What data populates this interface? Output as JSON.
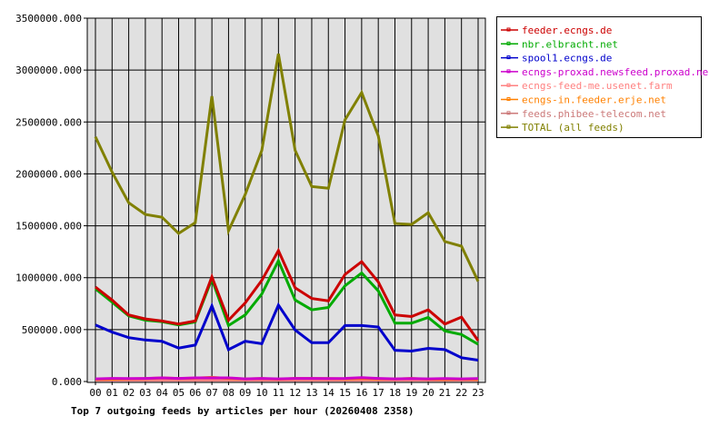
{
  "chart_data": {
    "type": "line",
    "title": "Top 7 outgoing feeds by articles per hour (20260408 2358)",
    "xlabel": "",
    "ylabel": "",
    "ylim": [
      0,
      3500000
    ],
    "yticks": [
      "0.000",
      "500000.000",
      "1000000.000",
      "1500000.000",
      "2000000.000",
      "2500000.000",
      "3000000.000",
      "3500000.000"
    ],
    "grid": true,
    "legend_position": "right",
    "categories": [
      "00",
      "01",
      "02",
      "03",
      "04",
      "05",
      "06",
      "07",
      "08",
      "09",
      "10",
      "11",
      "12",
      "13",
      "14",
      "15",
      "16",
      "17",
      "18",
      "19",
      "20",
      "21",
      "22",
      "23"
    ],
    "series": [
      {
        "name": "feeder.ecngs.de",
        "color": "#cc0000",
        "values": [
          910000,
          785000,
          641000,
          603000,
          583000,
          554000,
          583000,
          1009000,
          591000,
          757000,
          974000,
          1261000,
          902000,
          800000,
          777000,
          1032000,
          1154000,
          959000,
          641000,
          626000,
          690000,
          554000,
          620000,
          394000
        ]
      },
      {
        "name": "nbr.elbracht.net",
        "color": "#00aa00",
        "values": [
          893000,
          765000,
          632000,
          591000,
          577000,
          545000,
          574000,
          988000,
          539000,
          641000,
          843000,
          1163000,
          785000,
          690000,
          713000,
          922000,
          1046000,
          872000,
          562000,
          562000,
          617000,
          487000,
          452000,
          359000
        ]
      },
      {
        "name": "spool1.ecngs.de",
        "color": "#0000cc",
        "values": [
          545000,
          476000,
          423000,
          400000,
          388000,
          322000,
          351000,
          728000,
          307000,
          388000,
          365000,
          736000,
          496000,
          374000,
          374000,
          539000,
          539000,
          525000,
          301000,
          293000,
          319000,
          307000,
          229000,
          206000
        ]
      },
      {
        "name": "ecngs-proxad.newsfeed.proxad.net",
        "color": "#cc00cc",
        "values": [
          25000,
          30000,
          28000,
          30000,
          35000,
          30000,
          35000,
          35000,
          35000,
          25000,
          30000,
          25000,
          30000,
          30000,
          28000,
          30000,
          38000,
          30000,
          25000,
          28000,
          25000,
          28000,
          25000,
          28000
        ]
      },
      {
        "name": "ecngs-feed-me.usenet.farm",
        "color": "#ff8080",
        "values": [
          15000,
          15000,
          15000,
          15000,
          15000,
          15000,
          15000,
          15000,
          15000,
          15000,
          15000,
          15000,
          15000,
          15000,
          15000,
          15000,
          15000,
          15000,
          15000,
          15000,
          15000,
          15000,
          15000,
          15000
        ]
      },
      {
        "name": "ecngs-in.feeder.erje.net",
        "color": "#ff8000",
        "values": [
          20000,
          22000,
          25000,
          28000,
          35000,
          30000,
          32000,
          40000,
          30000,
          25000,
          28000,
          22000,
          30000,
          30000,
          28000,
          26000,
          30000,
          25000,
          24000,
          30000,
          22000,
          20000,
          22000,
          20000
        ]
      },
      {
        "name": "feeds.phibee-telecom.net",
        "color": "#cc7a7a",
        "values": [
          12000,
          12000,
          12000,
          12000,
          12000,
          12000,
          12000,
          12000,
          12000,
          12000,
          12000,
          12000,
          12000,
          12000,
          12000,
          12000,
          12000,
          12000,
          12000,
          12000,
          12000,
          12000,
          12000,
          12000
        ]
      },
      {
        "name": "TOTAL (all feeds)",
        "color": "#808000",
        "values": [
          2357000,
          2017000,
          1722000,
          1609000,
          1583000,
          1426000,
          1530000,
          2748000,
          1452000,
          1800000,
          2226000,
          3157000,
          2226000,
          1878000,
          1861000,
          2522000,
          2783000,
          2365000,
          1522000,
          1513000,
          1626000,
          1348000,
          1304000,
          965000
        ]
      }
    ]
  }
}
